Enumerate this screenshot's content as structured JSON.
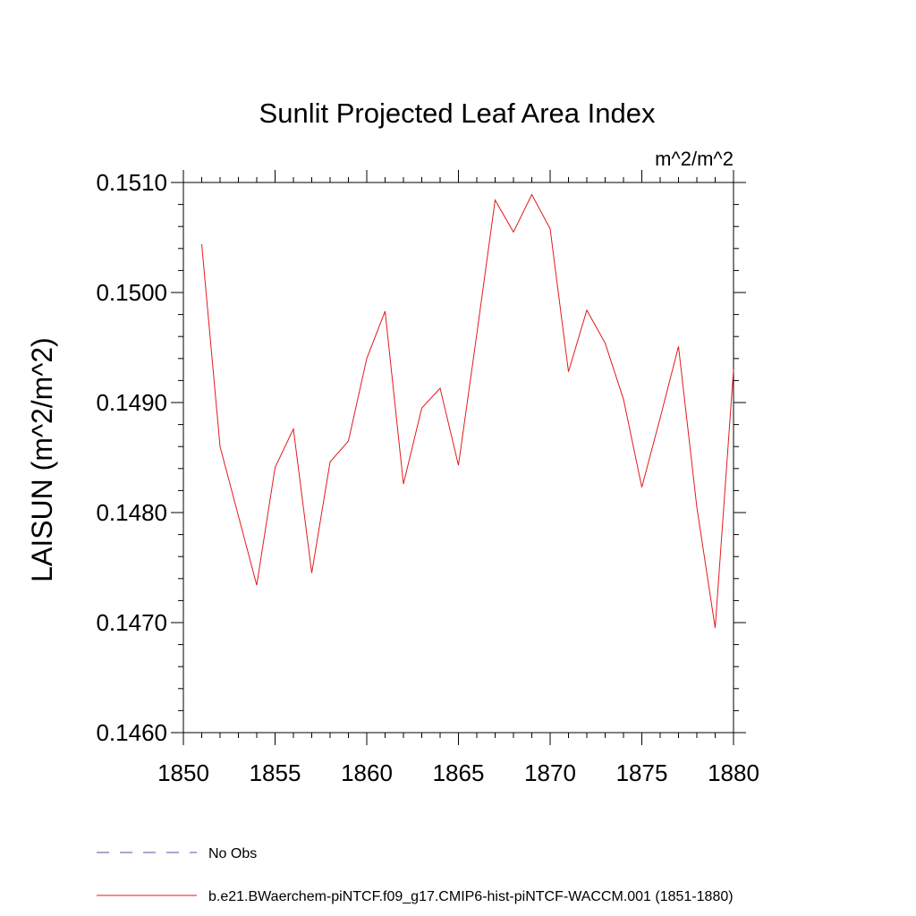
{
  "chart_data": {
    "type": "line",
    "title": "Sunlit Projected Leaf Area Index",
    "units_label": "m^2/m^2",
    "ylabel": "LAISUN  (m^2/m^2)",
    "xlabel": "",
    "xlim": [
      1850,
      1880
    ],
    "ylim": [
      0.146,
      0.151
    ],
    "x_ticks": [
      "1850",
      "1855",
      "1860",
      "1865",
      "1870",
      "1875",
      "1880"
    ],
    "x_tick_values": [
      1850,
      1855,
      1860,
      1865,
      1870,
      1875,
      1880
    ],
    "y_ticks": [
      "0.1460",
      "0.1470",
      "0.1480",
      "0.1490",
      "0.1500",
      "0.1510"
    ],
    "y_tick_values": [
      0.146,
      0.147,
      0.148,
      0.149,
      0.15,
      0.151
    ],
    "grid": false,
    "legend_position": "bottom-left",
    "series": [
      {
        "name": "b.e21.BWaerchem-piNTCF.f09_g17.CMIP6-hist-piNTCF-WACCM.001 (1851-1880)",
        "color": "#e31a1c",
        "style": "solid",
        "x": [
          1851,
          1852,
          1853,
          1854,
          1855,
          1856,
          1857,
          1858,
          1859,
          1860,
          1861,
          1862,
          1863,
          1864,
          1865,
          1866,
          1867,
          1868,
          1869,
          1870,
          1871,
          1872,
          1873,
          1874,
          1875,
          1876,
          1877,
          1878,
          1879,
          1880
        ],
        "values": [
          0.15044,
          0.1486,
          0.14797,
          0.14734,
          0.14841,
          0.14876,
          0.14745,
          0.14846,
          0.14865,
          0.1494,
          0.14983,
          0.14826,
          0.14895,
          0.14913,
          0.14843,
          0.14962,
          0.15084,
          0.15055,
          0.15089,
          0.15058,
          0.14928,
          0.14984,
          0.14954,
          0.14903,
          0.14823,
          0.14886,
          0.14951,
          0.14805,
          0.14695,
          0.1493
        ]
      },
      {
        "name": "No Obs",
        "color": "#5a4fa0",
        "style": "dashed",
        "x": [],
        "values": []
      }
    ]
  }
}
